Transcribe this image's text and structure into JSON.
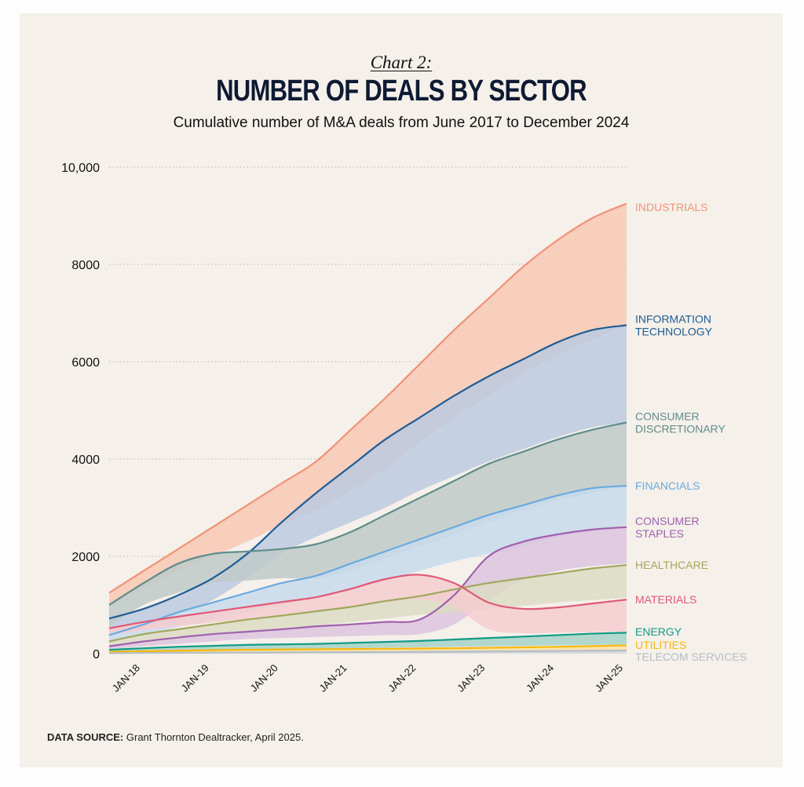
{
  "header": {
    "kicker": "Chart 2:",
    "title": "NUMBER OF DEALS BY SECTOR",
    "subtitle": "Cumulative number of M&A deals from June 2017 to December 2024"
  },
  "footer": {
    "source_label": "DATA SOURCE:",
    "source_text": "Grant Thornton Dealtracker, April 2025."
  },
  "chart_data": {
    "type": "area",
    "title": "NUMBER OF DEALS BY SECTOR",
    "subtitle": "Cumulative number of M&A deals from June 2017 to December 2024",
    "xlabel": "",
    "ylabel": "",
    "x": [
      2017.5,
      2018.0,
      2018.5,
      2019.0,
      2019.5,
      2020.0,
      2020.5,
      2021.0,
      2021.5,
      2022.0,
      2022.5,
      2023.0,
      2023.5,
      2024.0,
      2024.5,
      2025.0
    ],
    "x_range": [
      2017.5,
      2025.0
    ],
    "x_ticks": [
      {
        "value": 2018,
        "label": "JAN-18"
      },
      {
        "value": 2019,
        "label": "JAN-19"
      },
      {
        "value": 2020,
        "label": "JAN-20"
      },
      {
        "value": 2021,
        "label": "JAN-21"
      },
      {
        "value": 2022,
        "label": "JAN-22"
      },
      {
        "value": 2023,
        "label": "JAN-23"
      },
      {
        "value": 2024,
        "label": "JAN-24"
      },
      {
        "value": 2025,
        "label": "JAN-25"
      }
    ],
    "ylim": [
      0,
      10000
    ],
    "y_ticks": [
      {
        "value": 0,
        "label": "0"
      },
      {
        "value": 2000,
        "label": "2000"
      },
      {
        "value": 4000,
        "label": "4000"
      },
      {
        "value": 6000,
        "label": "6000"
      },
      {
        "value": 8000,
        "label": "8000"
      },
      {
        "value": 10000,
        "label": "10,000"
      }
    ],
    "grid": true,
    "legend": "right-end-labels",
    "series": [
      {
        "name": "INDUSTRIALS",
        "label_lines": [
          "INDUSTRIALS"
        ],
        "color": "#ef9477",
        "fill": "#f8c8b4",
        "values": [
          1250,
          1700,
          2150,
          2600,
          3050,
          3500,
          3950,
          4600,
          5250,
          5950,
          6650,
          7300,
          7950,
          8500,
          8950,
          9250
        ],
        "band_low": [
          1000,
          1350,
          1700,
          2000,
          2300,
          2650,
          2950,
          3350,
          3800,
          4350,
          4850,
          5300,
          5750,
          6150,
          6450,
          6750
        ]
      },
      {
        "name": "INFORMATION TECHNOLOGY",
        "label_lines": [
          "INFORMATION",
          "TECHNOLOGY"
        ],
        "color": "#1f5d94",
        "fill": "#bccae0",
        "values": [
          720,
          920,
          1200,
          1550,
          2050,
          2700,
          3300,
          3850,
          4400,
          4850,
          5300,
          5700,
          6050,
          6400,
          6650,
          6750
        ],
        "band_low": [
          350,
          550,
          800,
          1100,
          1550,
          2050,
          2400,
          2700,
          3000,
          3350,
          3650,
          3950,
          4200,
          4450,
          4650,
          4750
        ]
      },
      {
        "name": "CONSUMER DISCRETIONARY",
        "label_lines": [
          "CONSUMER",
          "DISCRETIONARY"
        ],
        "color": "#5f8d8b",
        "fill": "#c0cac9",
        "values": [
          1000,
          1450,
          1850,
          2050,
          2100,
          2150,
          2250,
          2500,
          2850,
          3200,
          3550,
          3900,
          4150,
          4400,
          4600,
          4750
        ],
        "band_low": [
          550,
          1000,
          1250,
          1450,
          1500,
          1550,
          1550,
          1700,
          1950,
          2200,
          2450,
          2700,
          2950,
          3150,
          3300,
          3450
        ]
      },
      {
        "name": "FINANCIALS",
        "label_lines": [
          "FINANCIALS"
        ],
        "color": "#6aaade",
        "fill": "#c8daec",
        "values": [
          380,
          600,
          850,
          1050,
          1250,
          1450,
          1600,
          1850,
          2100,
          2350,
          2600,
          2850,
          3050,
          3250,
          3400,
          3450
        ],
        "band_low": [
          250,
          350,
          550,
          700,
          850,
          1000,
          1150,
          1300,
          1500,
          1700,
          1900,
          2050,
          2200,
          2400,
          2500,
          2600
        ]
      },
      {
        "name": "CONSUMER STAPLES",
        "label_lines": [
          "CONSUMER",
          "STAPLES"
        ],
        "color": "#a060ad",
        "fill": "#ddc4df",
        "values": [
          150,
          250,
          330,
          400,
          450,
          500,
          560,
          600,
          650,
          700,
          1200,
          2000,
          2300,
          2450,
          2550,
          2600
        ],
        "band_low": [
          100,
          150,
          200,
          250,
          300,
          320,
          340,
          360,
          380,
          400,
          600,
          1100,
          1500,
          1700,
          1800,
          1850
        ]
      },
      {
        "name": "HEALTHCARE",
        "label_lines": [
          "HEALTHCARE"
        ],
        "color": "#a2a75e",
        "fill": "#dcdcc4",
        "values": [
          250,
          400,
          500,
          600,
          700,
          780,
          870,
          960,
          1080,
          1180,
          1320,
          1450,
          1550,
          1650,
          1750,
          1820
        ],
        "band_low": [
          150,
          220,
          300,
          380,
          450,
          520,
          580,
          650,
          720,
          800,
          850,
          920,
          980,
          1050,
          1100,
          1150
        ]
      },
      {
        "name": "MATERIALS",
        "label_lines": [
          "MATERIALS"
        ],
        "color": "#e05877",
        "fill": "#f4cdd0",
        "values": [
          520,
          650,
          760,
          860,
          960,
          1060,
          1160,
          1330,
          1530,
          1620,
          1450,
          1050,
          920,
          950,
          1030,
          1110
        ],
        "band_low": [
          380,
          480,
          560,
          640,
          720,
          800,
          880,
          960,
          1050,
          1120,
          950,
          500,
          420,
          430,
          440,
          450
        ]
      },
      {
        "name": "ENERGY",
        "label_lines": [
          "ENERGY"
        ],
        "color": "#129a86",
        "fill": "#a6d3c8",
        "values": [
          80,
          110,
          140,
          160,
          180,
          190,
          200,
          220,
          240,
          260,
          290,
          320,
          350,
          380,
          410,
          430
        ],
        "band_low": [
          40,
          50,
          60,
          70,
          80,
          90,
          100,
          110,
          120,
          130,
          140,
          150,
          160,
          170,
          180,
          190
        ]
      },
      {
        "name": "UTILITIES",
        "label_lines": [
          "UTILITIES"
        ],
        "color": "#f6b80c",
        "fill": "#fbe0a0",
        "values": [
          40,
          50,
          60,
          70,
          80,
          85,
          90,
          95,
          100,
          105,
          110,
          120,
          130,
          140,
          155,
          170
        ],
        "band_low": [
          10,
          15,
          20,
          25,
          30,
          35,
          40,
          45,
          50,
          55,
          60,
          65,
          70,
          75,
          80,
          85
        ]
      },
      {
        "name": "TELECOM SERVICES",
        "label_lines": [
          "TELECOM SERVICES"
        ],
        "color": "#b5bdc4",
        "fill": "#d1d6da",
        "values": [
          10,
          15,
          18,
          20,
          22,
          25,
          28,
          30,
          33,
          36,
          40,
          45,
          50,
          55,
          60,
          65
        ],
        "band_low": [
          0,
          0,
          0,
          0,
          0,
          0,
          0,
          0,
          0,
          0,
          0,
          0,
          0,
          0,
          0,
          0
        ]
      }
    ],
    "end_label_offsets_note": "labels placed at right end of each series"
  }
}
